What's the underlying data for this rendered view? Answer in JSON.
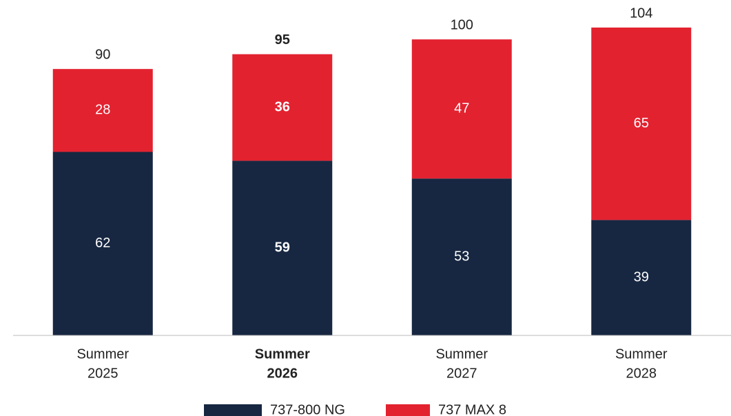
{
  "chart_data": {
    "type": "stacked_bar",
    "categories": [
      [
        "Summer",
        "2025"
      ],
      [
        "Summer",
        "2026"
      ],
      [
        "Summer",
        "2027"
      ],
      [
        "Summer",
        "2028"
      ]
    ],
    "bold": [
      false,
      true,
      false,
      false
    ],
    "series": [
      {
        "name": "737-800 NG",
        "color": "#172741",
        "values": [
          62,
          59,
          53,
          39
        ]
      },
      {
        "name": "737 MAX 8",
        "color": "#e32230",
        "values": [
          28,
          36,
          47,
          65
        ]
      }
    ],
    "totals": [
      90,
      95,
      100,
      104
    ],
    "ylim": [
      0,
      104
    ],
    "legend": "bottom"
  }
}
